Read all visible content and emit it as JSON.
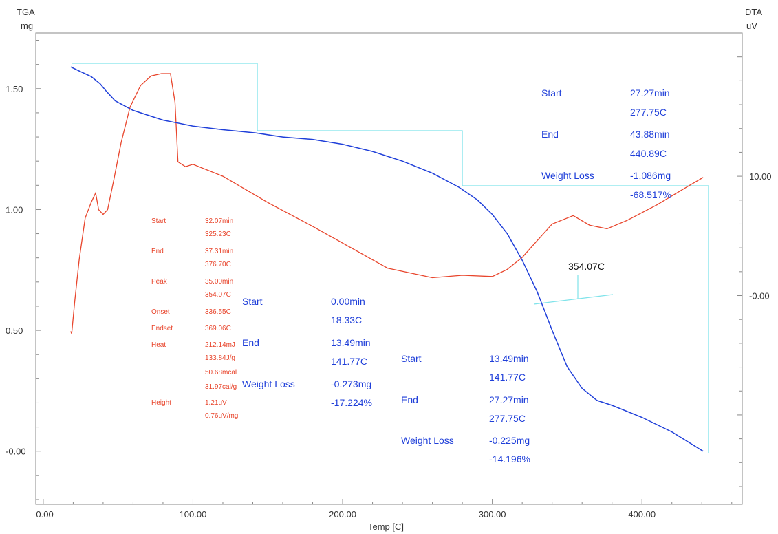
{
  "axes": {
    "y_left_title": "TGA",
    "y_left_unit": "mg",
    "y_right_title": "DTA",
    "y_right_unit": "uV",
    "x_label": "Temp  [C]"
  },
  "chart_data": {
    "type": "line",
    "xlabel": "Temp  [C]",
    "ylabel_left": "TGA mg",
    "ylabel_right": "DTA uV",
    "xlim": [
      -5,
      467
    ],
    "ylim_left": [
      -0.22,
      1.73
    ],
    "ylim_right": [
      -17.5,
      22.0
    ],
    "x_ticks": [
      "-0.00",
      "100.00",
      "200.00",
      "300.00",
      "400.00"
    ],
    "y_left_ticks": [
      "-0.00",
      "0.50",
      "1.00",
      "1.50"
    ],
    "y_right_ticks": [
      "-0.00",
      "10.00"
    ],
    "grid": false,
    "series": [
      {
        "name": "TGA",
        "axis": "left",
        "color": "#1f3fd9",
        "x": [
          18.33,
          25,
          32,
          38,
          42,
          48,
          60,
          80,
          100,
          120,
          141.77,
          160,
          180,
          200,
          220,
          240,
          260,
          277.75,
          290,
          300,
          310,
          320,
          330,
          340,
          350,
          360,
          370,
          380,
          400,
          420,
          440.89
        ],
        "y": [
          1.59,
          1.57,
          1.55,
          1.52,
          1.49,
          1.45,
          1.41,
          1.37,
          1.345,
          1.33,
          1.317,
          1.3,
          1.29,
          1.27,
          1.24,
          1.2,
          1.15,
          1.092,
          1.04,
          0.98,
          0.9,
          0.79,
          0.66,
          0.5,
          0.35,
          0.26,
          0.21,
          0.19,
          0.14,
          0.08,
          -0.0
        ]
      },
      {
        "name": "DTA",
        "axis": "right",
        "color": "#e8452c",
        "x": [
          18.33,
          19,
          21,
          24,
          28,
          32,
          35,
          37,
          40,
          43,
          47,
          52,
          58,
          65,
          72,
          79,
          85,
          88,
          90,
          95,
          100,
          120,
          150,
          180,
          200,
          230,
          260,
          280,
          300,
          310,
          320,
          330,
          340,
          354.07,
          365,
          376.7,
          390,
          410,
          430,
          440.89
        ],
        "y": [
          -3.0,
          -3.2,
          -0.5,
          3.0,
          6.5,
          7.8,
          8.6,
          7.2,
          6.8,
          7.2,
          9.6,
          12.8,
          15.8,
          17.6,
          18.4,
          18.6,
          18.6,
          16.2,
          11.2,
          10.8,
          11.0,
          10.0,
          7.8,
          5.8,
          4.4,
          2.3,
          1.5,
          1.7,
          1.6,
          2.2,
          3.2,
          4.6,
          6.0,
          6.7,
          5.9,
          5.6,
          6.3,
          7.6,
          9.1,
          9.9
        ]
      }
    ],
    "peak_label": "354.07C"
  },
  "annotations": {
    "step1": {
      "start_label": "Start",
      "start_time": "0.00min",
      "start_temp": "18.33C",
      "end_label": "End",
      "end_time": "13.49min",
      "end_temp": "141.77C",
      "loss_label": "Weight Loss",
      "loss_mg": "-0.273mg",
      "loss_pct": "-17.224%"
    },
    "step2": {
      "start_label": "Start",
      "start_time": "13.49min",
      "start_temp": "141.77C",
      "end_label": "End",
      "end_time": "27.27min",
      "end_temp": "277.75C",
      "loss_label": "Weight Loss",
      "loss_mg": "-0.225mg",
      "loss_pct": "-14.196%"
    },
    "step3": {
      "start_label": "Start",
      "start_time": "27.27min",
      "start_temp": "277.75C",
      "end_label": "End",
      "end_time": "43.88min",
      "end_temp": "440.89C",
      "loss_label": "Weight Loss",
      "loss_mg": "-1.086mg",
      "loss_pct": "-68.517%"
    },
    "peak": {
      "start_label": "Start",
      "start_time": "32.07min",
      "start_temp": "325.23C",
      "end_label": "End",
      "end_time": "37.31min",
      "end_temp": "376.70C",
      "peak_label": "Peak",
      "peak_time": "35.00min",
      "peak_temp": "354.07C",
      "onset_label": "Onset",
      "onset_val": "336.55C",
      "endset_label": "Endset",
      "endset_val": "369.06C",
      "heat_label": "Heat",
      "heat_mj": "212.14mJ",
      "heat_jg": "133.84J/g",
      "heat_mcal": "50.68mcal",
      "heat_calg": "31.97cal/g",
      "height_label": "Height",
      "height_uv": "1.21uV",
      "height_uvmg": "0.76uV/mg"
    }
  },
  "colors": {
    "tga": "#1f3fd9",
    "dta": "#e8452c",
    "step_lines": "#7fe3ea",
    "frame": "#888888"
  }
}
